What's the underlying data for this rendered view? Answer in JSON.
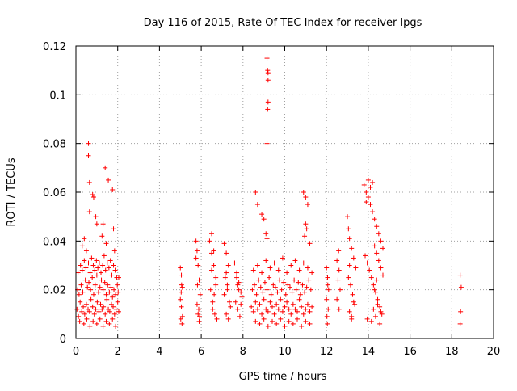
{
  "chart_data": {
    "type": "scatter",
    "title": "Day 116 of 2015, Rate Of TEC Index for receiver lpgs",
    "xlabel": "GPS time / hours",
    "ylabel": "ROTI / TECUs",
    "xlim": [
      0,
      20
    ],
    "ylim": [
      0,
      0.12
    ],
    "xticks": [
      "0",
      "2",
      "4",
      "6",
      "8",
      "10",
      "12",
      "14",
      "16",
      "18",
      "20"
    ],
    "yticks": [
      "0",
      "0.02",
      "0.04",
      "0.06",
      "0.08",
      "0.1",
      "0.12"
    ],
    "grid": true,
    "marker": "+",
    "color": "#ff0000",
    "series": [
      {
        "x": [
          0.05,
          0.12,
          0.2,
          0.28,
          0.35,
          0.42,
          0.5,
          0.58,
          0.65,
          0.72,
          0.8,
          0.88,
          0.95,
          1.02,
          1.1,
          1.18,
          1.25,
          1.32,
          1.4,
          1.48,
          1.55,
          1.62,
          1.7,
          1.78,
          1.85,
          1.92,
          2.0,
          2.05,
          0.08,
          0.15,
          0.25,
          0.33,
          0.45,
          0.55,
          0.62,
          0.7,
          0.78,
          0.85,
          0.92,
          1.0,
          1.08,
          1.15,
          1.22,
          1.3,
          1.38,
          1.45,
          1.52,
          1.6,
          1.68,
          1.75,
          1.82,
          1.9,
          1.98,
          2.02,
          0.1,
          0.22,
          0.3,
          0.4,
          0.48,
          0.6,
          0.68,
          0.75,
          0.83,
          0.9,
          0.98,
          1.05,
          1.12,
          1.2,
          1.28,
          1.35,
          1.42,
          1.5,
          1.58,
          1.65,
          1.72,
          1.8,
          1.88,
          1.95,
          0.18,
          0.38,
          0.52,
          0.67,
          0.82,
          1.0,
          1.15,
          1.3,
          1.45,
          1.6,
          1.75,
          1.9,
          0.6,
          0.6,
          0.65,
          0.65,
          0.8,
          0.85,
          0.95,
          1.0,
          1.3,
          1.4,
          1.55,
          1.75,
          1.8,
          1.85,
          0.3,
          0.4,
          0.5,
          1.25,
          1.45,
          2.05,
          5.0,
          5.05,
          5.1,
          5.0,
          5.05,
          5.1,
          5.02,
          5.08,
          5.04,
          5.06,
          5.75,
          5.8,
          5.85,
          5.9,
          5.95,
          5.8,
          5.85,
          5.9,
          5.82,
          5.88,
          5.75,
          5.92,
          6.4,
          6.5,
          6.6,
          6.7,
          6.45,
          6.55,
          6.65,
          6.75,
          6.5,
          6.6,
          6.7,
          6.55,
          6.62,
          6.5,
          7.1,
          7.2,
          7.3,
          7.15,
          7.25,
          7.35,
          7.2,
          7.3,
          7.1,
          7.25,
          7.4,
          7.2,
          7.6,
          7.7,
          7.8,
          7.9,
          7.65,
          7.75,
          7.85,
          7.95,
          7.7,
          7.8,
          7.9,
          7.75,
          8.4,
          8.5,
          8.6,
          8.7,
          8.8,
          8.9,
          9.0,
          9.1,
          9.2,
          9.3,
          9.4,
          9.5,
          9.6,
          9.7,
          9.8,
          9.9,
          10.0,
          10.1,
          10.2,
          10.3,
          10.4,
          10.5,
          10.6,
          10.7,
          10.8,
          10.9,
          11.0,
          11.1,
          11.2,
          11.3,
          8.45,
          8.55,
          8.65,
          8.75,
          8.85,
          8.95,
          9.05,
          9.15,
          9.25,
          9.35,
          9.45,
          9.55,
          9.65,
          9.75,
          9.85,
          9.95,
          10.05,
          10.15,
          10.25,
          10.35,
          10.45,
          10.55,
          10.65,
          10.75,
          10.85,
          10.95,
          11.05,
          11.15,
          11.25,
          8.5,
          8.7,
          8.9,
          9.1,
          9.3,
          9.5,
          9.7,
          9.9,
          10.1,
          10.3,
          10.5,
          10.7,
          10.9,
          11.1,
          11.3,
          8.6,
          8.8,
          9.0,
          9.2,
          9.4,
          9.6,
          9.8,
          10.0,
          10.2,
          10.4,
          10.6,
          10.8,
          11.0,
          11.2,
          9.15,
          9.18,
          9.2,
          9.2,
          9.2,
          9.18,
          9.15,
          8.6,
          8.7,
          8.9,
          9.0,
          9.1,
          9.15,
          10.9,
          11.0,
          11.1,
          11.0,
          11.05,
          10.95,
          11.2,
          12.0,
          12.05,
          12.1,
          12.0,
          12.08,
          12.02,
          12.06,
          12.04,
          12.5,
          12.6,
          12.55,
          12.65,
          12.5,
          12.6,
          12.58,
          13.0,
          13.1,
          13.2,
          13.3,
          13.4,
          13.05,
          13.15,
          13.25,
          13.35,
          13.1,
          13.2,
          13.3,
          13.05,
          13.2,
          13.1,
          13.8,
          13.9,
          14.0,
          14.1,
          14.2,
          14.3,
          14.4,
          14.5,
          14.6,
          14.7,
          13.85,
          13.95,
          14.05,
          14.15,
          14.25,
          14.35,
          14.45,
          14.55,
          14.65,
          13.9,
          14.0,
          14.1,
          14.2,
          14.3,
          14.4,
          14.5,
          14.6,
          14.7,
          13.95,
          14.15,
          14.35,
          14.55,
          14.25,
          14.45,
          14.6,
          14.3,
          14.4,
          18.4,
          18.45,
          18.42,
          18.4
        ],
        "y": [
          0.012,
          0.009,
          0.015,
          0.011,
          0.013,
          0.01,
          0.014,
          0.012,
          0.011,
          0.016,
          0.013,
          0.01,
          0.012,
          0.015,
          0.011,
          0.014,
          0.012,
          0.013,
          0.01,
          0.016,
          0.012,
          0.011,
          0.014,
          0.013,
          0.01,
          0.012,
          0.015,
          0.011,
          0.02,
          0.018,
          0.022,
          0.019,
          0.024,
          0.021,
          0.023,
          0.02,
          0.025,
          0.018,
          0.022,
          0.026,
          0.019,
          0.021,
          0.024,
          0.02,
          0.023,
          0.018,
          0.022,
          0.019,
          0.021,
          0.017,
          0.02,
          0.018,
          0.022,
          0.019,
          0.027,
          0.03,
          0.028,
          0.032,
          0.029,
          0.031,
          0.027,
          0.033,
          0.03,
          0.028,
          0.032,
          0.029,
          0.031,
          0.027,
          0.03,
          0.034,
          0.028,
          0.031,
          0.029,
          0.032,
          0.026,
          0.03,
          0.028,
          0.025,
          0.007,
          0.006,
          0.008,
          0.005,
          0.007,
          0.006,
          0.008,
          0.005,
          0.007,
          0.006,
          0.008,
          0.005,
          0.08,
          0.075,
          0.064,
          0.052,
          0.059,
          0.058,
          0.05,
          0.047,
          0.047,
          0.07,
          0.065,
          0.061,
          0.045,
          0.036,
          0.038,
          0.041,
          0.036,
          0.042,
          0.039,
          0.025,
          0.029,
          0.026,
          0.021,
          0.016,
          0.013,
          0.009,
          0.008,
          0.006,
          0.019,
          0.022,
          0.04,
          0.036,
          0.03,
          0.024,
          0.018,
          0.014,
          0.01,
          0.007,
          0.022,
          0.012,
          0.033,
          0.009,
          0.04,
          0.035,
          0.03,
          0.025,
          0.02,
          0.015,
          0.01,
          0.008,
          0.028,
          0.036,
          0.022,
          0.012,
          0.018,
          0.043,
          0.039,
          0.035,
          0.03,
          0.025,
          0.02,
          0.015,
          0.01,
          0.008,
          0.018,
          0.022,
          0.013,
          0.027,
          0.031,
          0.027,
          0.023,
          0.019,
          0.015,
          0.012,
          0.009,
          0.017,
          0.025,
          0.02,
          0.014,
          0.022,
          0.013,
          0.011,
          0.015,
          0.012,
          0.014,
          0.01,
          0.016,
          0.012,
          0.011,
          0.015,
          0.013,
          0.01,
          0.014,
          0.012,
          0.016,
          0.011,
          0.013,
          0.015,
          0.012,
          0.01,
          0.014,
          0.012,
          0.011,
          0.016,
          0.013,
          0.01,
          0.012,
          0.014,
          0.011,
          0.013,
          0.02,
          0.022,
          0.018,
          0.024,
          0.021,
          0.019,
          0.023,
          0.02,
          0.025,
          0.018,
          0.022,
          0.021,
          0.019,
          0.024,
          0.02,
          0.023,
          0.018,
          0.022,
          0.021,
          0.019,
          0.024,
          0.02,
          0.023,
          0.018,
          0.022,
          0.019,
          0.021,
          0.024,
          0.02,
          0.028,
          0.03,
          0.027,
          0.032,
          0.029,
          0.031,
          0.028,
          0.033,
          0.027,
          0.03,
          0.032,
          0.028,
          0.031,
          0.029,
          0.027,
          0.007,
          0.006,
          0.008,
          0.005,
          0.007,
          0.006,
          0.008,
          0.005,
          0.007,
          0.006,
          0.008,
          0.005,
          0.007,
          0.006,
          0.115,
          0.11,
          0.109,
          0.106,
          0.097,
          0.094,
          0.08,
          0.06,
          0.055,
          0.051,
          0.049,
          0.043,
          0.041,
          0.06,
          0.058,
          0.055,
          0.047,
          0.045,
          0.042,
          0.039,
          0.029,
          0.025,
          0.02,
          0.016,
          0.012,
          0.009,
          0.022,
          0.006,
          0.032,
          0.028,
          0.024,
          0.02,
          0.016,
          0.012,
          0.036,
          0.05,
          0.041,
          0.037,
          0.033,
          0.029,
          0.025,
          0.022,
          0.018,
          0.014,
          0.011,
          0.009,
          0.015,
          0.045,
          0.008,
          0.03,
          0.063,
          0.06,
          0.058,
          0.055,
          0.052,
          0.049,
          0.046,
          0.043,
          0.04,
          0.037,
          0.034,
          0.031,
          0.028,
          0.025,
          0.022,
          0.019,
          0.016,
          0.013,
          0.01,
          0.056,
          0.065,
          0.062,
          0.064,
          0.038,
          0.035,
          0.032,
          0.029,
          0.026,
          0.008,
          0.007,
          0.009,
          0.006,
          0.012,
          0.014,
          0.011,
          0.02,
          0.024,
          0.026,
          0.021,
          0.011,
          0.006
        ]
      }
    ]
  }
}
